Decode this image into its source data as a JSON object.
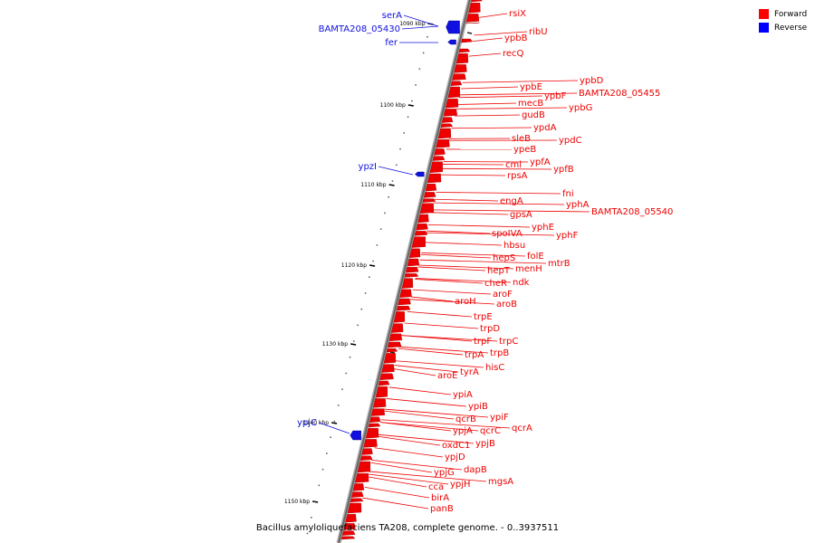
{
  "caption": "Bacillus amyloliquefaciens TA208, complete genome. - 0..3937511",
  "legend": {
    "forward": {
      "label": "Forward",
      "color": "#ff0000"
    },
    "reverse": {
      "label": "Reverse",
      "color": "#0000ff"
    }
  },
  "colors": {
    "forward": "#ee0000",
    "reverse": "#1010e0",
    "backbone": "#888888"
  },
  "ticks": [
    "1090 kbp",
    "1100 kbp",
    "1110 kbp",
    "1120 kbp",
    "1130 kbp",
    "1140 kbp",
    "1150 kbp"
  ],
  "forward_genes": [
    "rsiX",
    "ribU",
    "ypbB",
    "recQ",
    "ypbD",
    "ypbE",
    "ypbF",
    "BAMTA208_05455",
    "mecB",
    "ypbG",
    "gudB",
    "ypdA",
    "sleB",
    "ypdC",
    "ypeB",
    "ypfA",
    "cml",
    "ypfB",
    "rpsA",
    "fni",
    "engA",
    "yphA",
    "BAMTA208_05540",
    "gpsA",
    "yphE",
    "spoIVA",
    "yphF",
    "hbsu",
    "folE",
    "hepS",
    "mtrB",
    "menH",
    "hepT",
    "cheR",
    "ndk",
    "aroF",
    "aroH",
    "aroB",
    "trpE",
    "trpD",
    "trpF",
    "trpC",
    "trpA",
    "trpB",
    "hisC",
    "tyrA",
    "aroE",
    "ypiA",
    "ypiB",
    "ypiF",
    "qcrB",
    "qcrA",
    "ypjA",
    "qcrC",
    "ypjB",
    "oxdC1",
    "ypjD",
    "dapB",
    "ypjG",
    "mgsA",
    "cca",
    "ypjH",
    "birA",
    "panB"
  ],
  "reverse_genes": [
    "serA",
    "BAMTA208_05430",
    "fer",
    "ypzI",
    "ypjC"
  ]
}
